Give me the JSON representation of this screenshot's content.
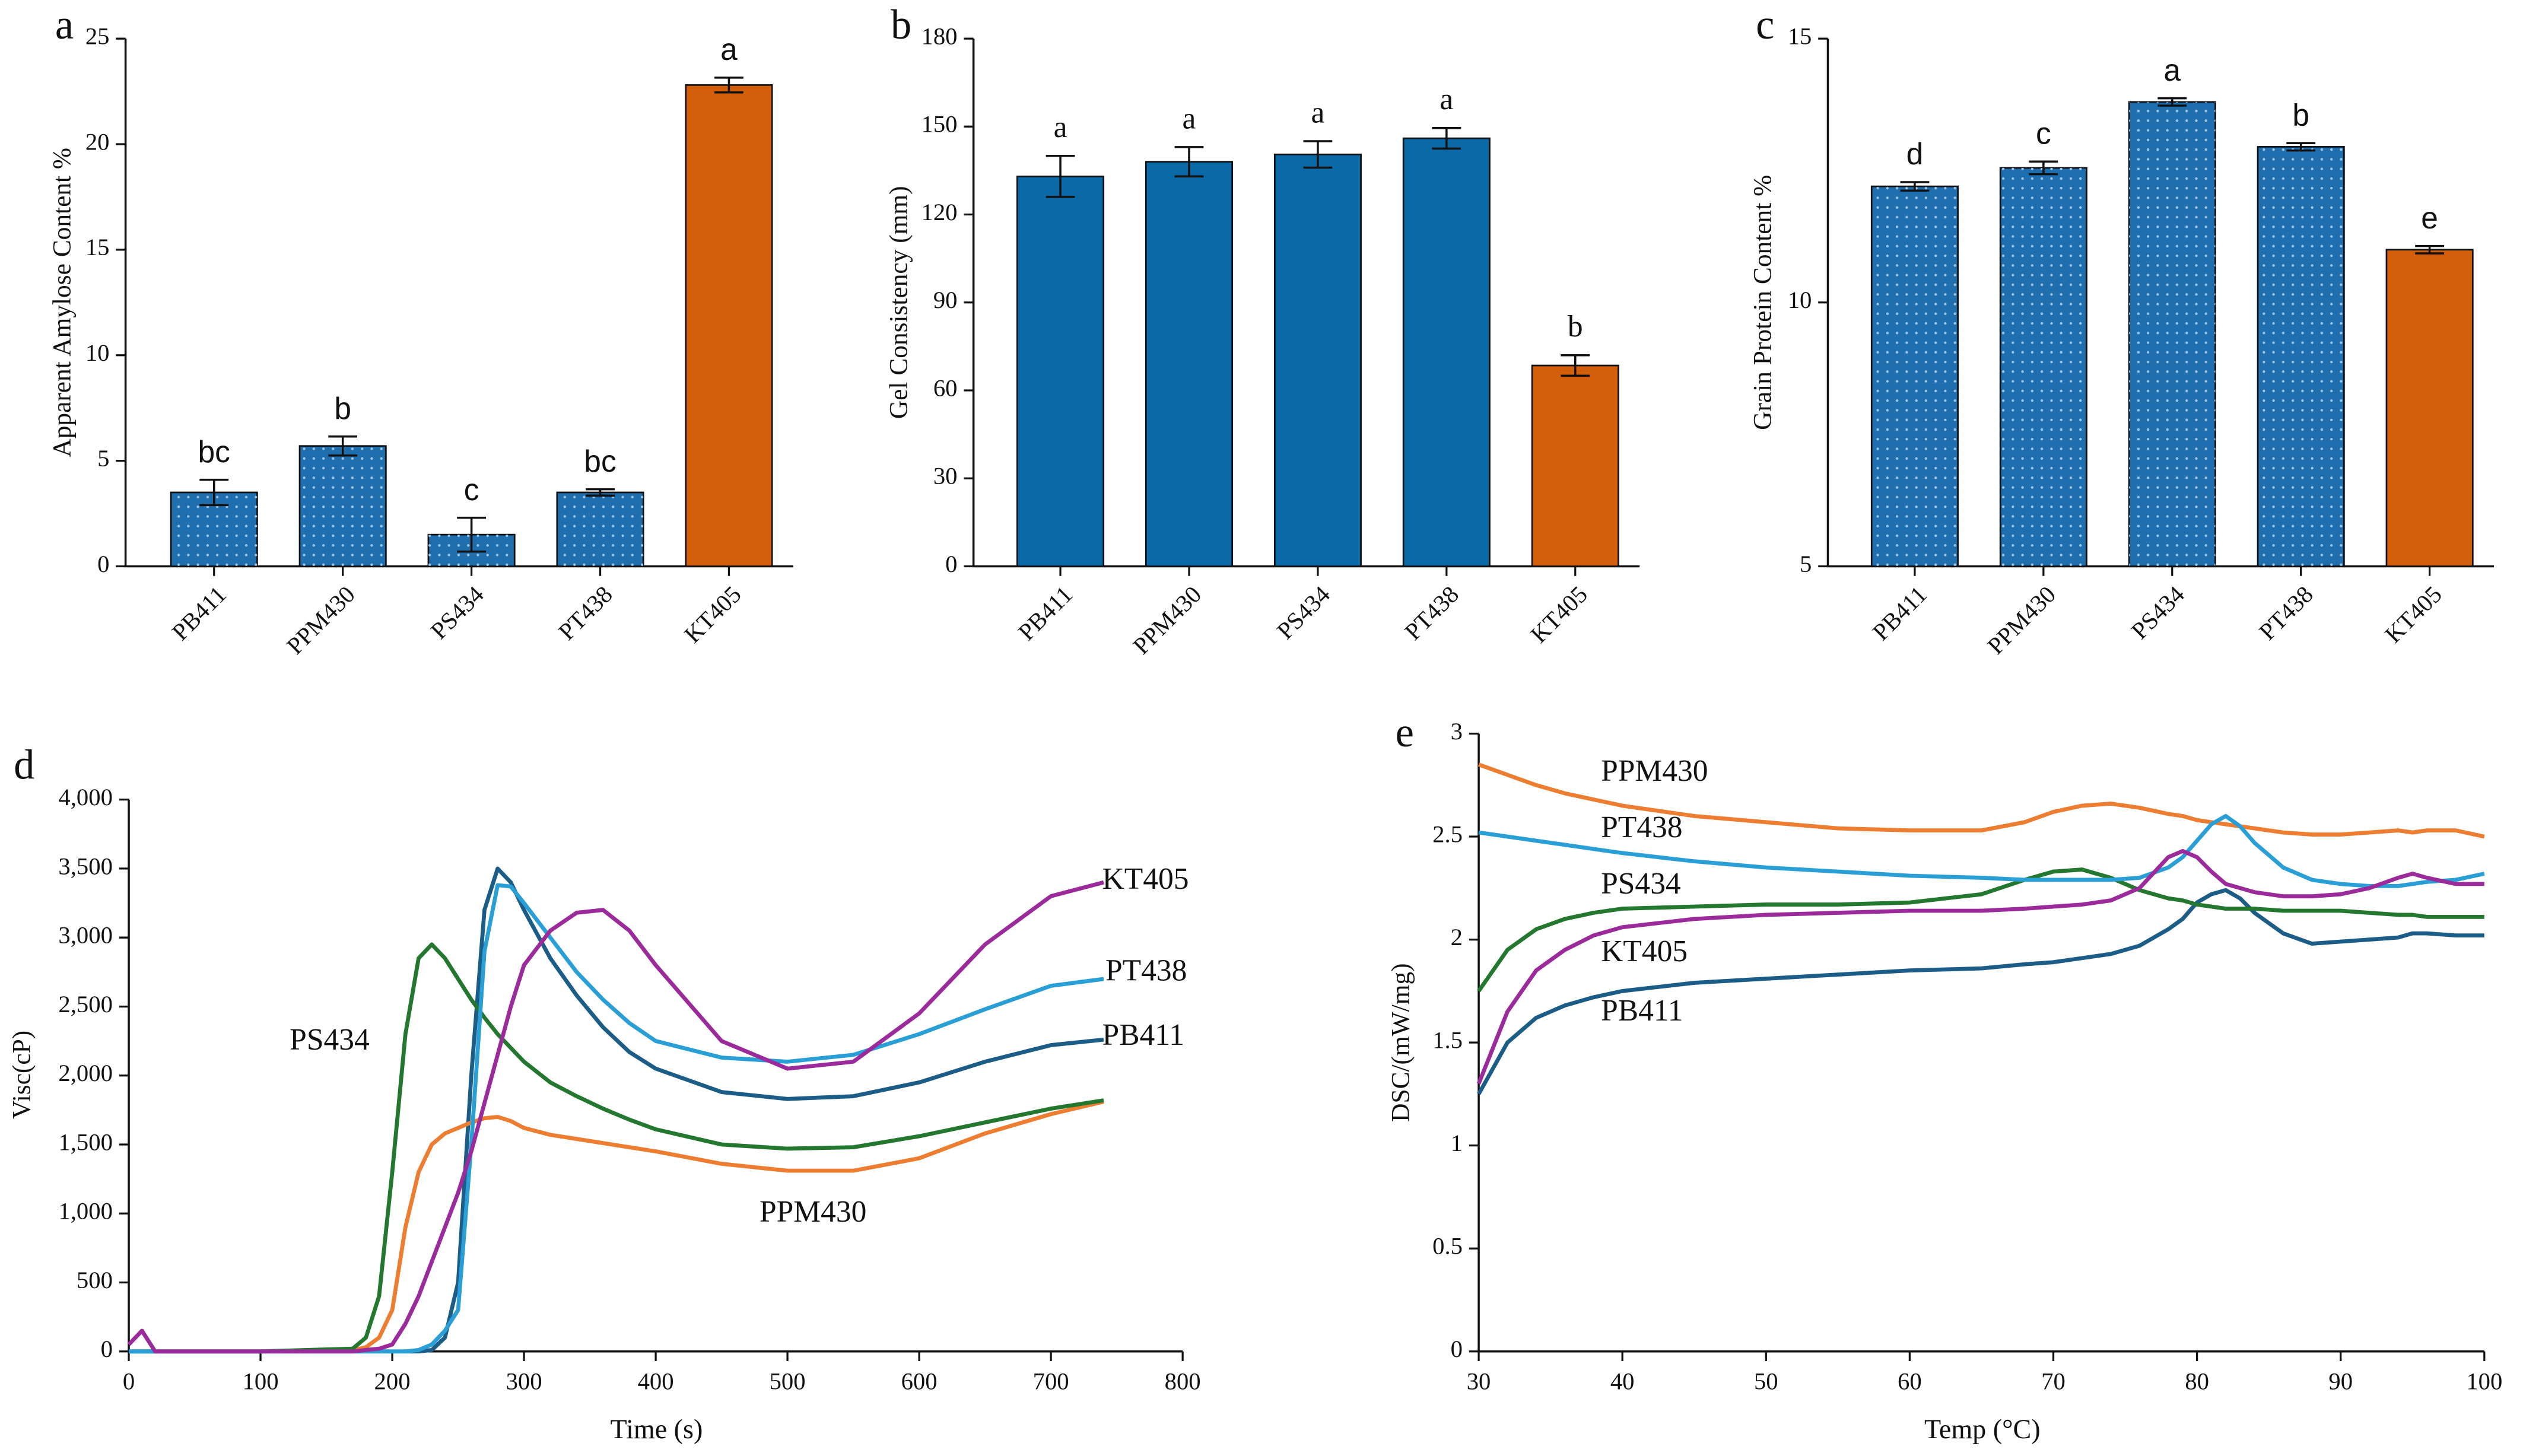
{
  "chart_data": [
    {
      "type": "bar",
      "panel": "a",
      "ylabel": "Apparent Amylose Content %",
      "categories": [
        "PB411",
        "PPM430",
        "PS434",
        "PT438",
        "KT405"
      ],
      "values": [
        3.5,
        5.7,
        1.5,
        3.5,
        22.8
      ],
      "errors": [
        0.6,
        0.45,
        0.8,
        0.15,
        0.35
      ],
      "annotations": [
        "bc",
        "b",
        "c",
        "bc",
        "a"
      ],
      "colors": [
        "#1f6faf",
        "#1f6faf",
        "#1f6faf",
        "#1f6faf",
        "#d35f0a"
      ],
      "pattern": "dots",
      "ylim": [
        0,
        25
      ],
      "yticks": [
        0,
        5,
        10,
        15,
        20,
        25
      ]
    },
    {
      "type": "bar",
      "panel": "b",
      "ylabel": "Gel Consistency (mm)",
      "categories": [
        "PB411",
        "PPM430",
        "PS434",
        "PT438",
        "KT405"
      ],
      "values": [
        133,
        138,
        140.5,
        146,
        68.5
      ],
      "errors": [
        7,
        5,
        4.5,
        3.5,
        3.5
      ],
      "annotations": [
        "a",
        "a",
        "a",
        "a",
        "b"
      ],
      "colors": [
        "#0a6aa8",
        "#0a6aa8",
        "#0a6aa8",
        "#0a6aa8",
        "#d35f0a"
      ],
      "pattern": "none",
      "ylim": [
        0,
        180
      ],
      "yticks": [
        0,
        30,
        60,
        90,
        120,
        150,
        180
      ]
    },
    {
      "type": "bar",
      "panel": "c",
      "ylabel": "Grain Protein Content %",
      "categories": [
        "PB411",
        "PPM430",
        "PS434",
        "PT438",
        "KT405"
      ],
      "values": [
        12.2,
        12.55,
        13.8,
        12.95,
        11.0
      ],
      "errors": [
        0.08,
        0.12,
        0.07,
        0.07,
        0.07
      ],
      "annotations": [
        "d",
        "c",
        "a",
        "b",
        "e"
      ],
      "colors": [
        "#1f6faf",
        "#1f6faf",
        "#1f6faf",
        "#1f6faf",
        "#d35f0a"
      ],
      "pattern": "dots",
      "ylim": [
        5,
        15
      ],
      "yticks": [
        5,
        10,
        15
      ]
    },
    {
      "type": "line",
      "panel": "d",
      "xlabel": "Time (s)",
      "ylabel": "Visc(cP)",
      "x": [
        0,
        10,
        20,
        100,
        170,
        180,
        190,
        200,
        210,
        220,
        230,
        240,
        250,
        260,
        270,
        280,
        290,
        300,
        320,
        340,
        360,
        380,
        400,
        450,
        500,
        550,
        600,
        650,
        700,
        740
      ],
      "series": [
        {
          "name": "PB411",
          "color": "#1c5d88",
          "values": [
            0,
            0,
            0,
            0,
            0,
            0,
            0,
            0,
            0,
            0,
            10,
            100,
            500,
            2000,
            3200,
            3500,
            3400,
            3200,
            2850,
            2580,
            2350,
            2170,
            2050,
            1880,
            1830,
            1850,
            1950,
            2100,
            2220,
            2260
          ]
        },
        {
          "name": "PPM430",
          "color": "#ed7d31",
          "values": [
            0,
            0,
            0,
            0,
            10,
            30,
            100,
            300,
            900,
            1300,
            1500,
            1580,
            1620,
            1660,
            1690,
            1700,
            1670,
            1620,
            1570,
            1540,
            1510,
            1480,
            1450,
            1360,
            1310,
            1310,
            1400,
            1580,
            1720,
            1810
          ]
        },
        {
          "name": "PS434",
          "color": "#23772e",
          "values": [
            0,
            0,
            0,
            0,
            20,
            100,
            400,
            1300,
            2300,
            2850,
            2950,
            2850,
            2700,
            2550,
            2420,
            2300,
            2200,
            2100,
            1950,
            1850,
            1760,
            1680,
            1610,
            1500,
            1470,
            1480,
            1560,
            1660,
            1760,
            1820
          ]
        },
        {
          "name": "PT438",
          "color": "#2a9fd6",
          "values": [
            0,
            0,
            0,
            0,
            0,
            0,
            0,
            0,
            0,
            10,
            50,
            150,
            300,
            1500,
            2900,
            3380,
            3370,
            3250,
            3000,
            2750,
            2550,
            2380,
            2250,
            2130,
            2100,
            2150,
            2300,
            2480,
            2650,
            2700
          ]
        },
        {
          "name": "KT405",
          "color": "#9b2a9b",
          "values": [
            50,
            150,
            0,
            0,
            0,
            10,
            20,
            50,
            200,
            400,
            650,
            900,
            1150,
            1450,
            1800,
            2150,
            2500,
            2800,
            3050,
            3180,
            3200,
            3050,
            2800,
            2250,
            2050,
            2100,
            2450,
            2950,
            3300,
            3400
          ]
        }
      ],
      "xlim": [
        0,
        800
      ],
      "xticks": [
        0,
        100,
        200,
        300,
        400,
        500,
        600,
        700,
        800
      ],
      "ylim": [
        0,
        4000
      ],
      "yticks": [
        0,
        500,
        {
          "value": 1000,
          "label": "1,000"
        },
        {
          "value": 1500,
          "label": "1,500"
        },
        {
          "value": 2000,
          "label": "2,000"
        },
        {
          "value": 2500,
          "label": "2,500"
        },
        {
          "value": 3000,
          "label": "3,000"
        },
        {
          "value": 3500,
          "label": "3,500"
        },
        {
          "value": 4000,
          "label": "4,000"
        }
      ]
    },
    {
      "type": "line",
      "panel": "e",
      "xlabel": "Temp (°C)",
      "ylabel": "DSC/(mW/mg)",
      "x": [
        30,
        32,
        34,
        36,
        38,
        40,
        45,
        50,
        55,
        60,
        65,
        68,
        70,
        72,
        74,
        76,
        78,
        79,
        80,
        81,
        82,
        83,
        84,
        86,
        88,
        90,
        92,
        94,
        95,
        96,
        98,
        100
      ],
      "series": [
        {
          "name": "PB411",
          "color": "#1c5d88",
          "values": [
            1.25,
            1.5,
            1.62,
            1.68,
            1.72,
            1.75,
            1.79,
            1.81,
            1.83,
            1.85,
            1.86,
            1.88,
            1.89,
            1.91,
            1.93,
            1.97,
            2.05,
            2.1,
            2.18,
            2.22,
            2.24,
            2.2,
            2.13,
            2.03,
            1.98,
            1.99,
            2.0,
            2.01,
            2.03,
            2.03,
            2.02,
            2.02
          ]
        },
        {
          "name": "PPM430",
          "color": "#ed7d31",
          "values": [
            2.85,
            2.8,
            2.75,
            2.71,
            2.68,
            2.65,
            2.6,
            2.57,
            2.54,
            2.53,
            2.53,
            2.57,
            2.62,
            2.65,
            2.66,
            2.64,
            2.61,
            2.6,
            2.58,
            2.57,
            2.56,
            2.55,
            2.54,
            2.52,
            2.51,
            2.51,
            2.52,
            2.53,
            2.52,
            2.53,
            2.53,
            2.5
          ]
        },
        {
          "name": "PS434",
          "color": "#23772e",
          "values": [
            1.75,
            1.95,
            2.05,
            2.1,
            2.13,
            2.15,
            2.16,
            2.17,
            2.17,
            2.18,
            2.22,
            2.29,
            2.33,
            2.34,
            2.3,
            2.24,
            2.2,
            2.19,
            2.17,
            2.16,
            2.15,
            2.15,
            2.15,
            2.14,
            2.14,
            2.14,
            2.13,
            2.12,
            2.12,
            2.11,
            2.11,
            2.11
          ]
        },
        {
          "name": "PT438",
          "color": "#2a9fd6",
          "values": [
            2.52,
            2.5,
            2.48,
            2.46,
            2.44,
            2.42,
            2.38,
            2.35,
            2.33,
            2.31,
            2.3,
            2.29,
            2.29,
            2.29,
            2.29,
            2.3,
            2.35,
            2.4,
            2.48,
            2.56,
            2.6,
            2.55,
            2.47,
            2.35,
            2.29,
            2.27,
            2.26,
            2.26,
            2.27,
            2.28,
            2.29,
            2.32
          ]
        },
        {
          "name": "KT405",
          "color": "#9b2a9b",
          "values": [
            1.3,
            1.65,
            1.85,
            1.95,
            2.02,
            2.06,
            2.1,
            2.12,
            2.13,
            2.14,
            2.14,
            2.15,
            2.16,
            2.17,
            2.19,
            2.25,
            2.4,
            2.43,
            2.4,
            2.33,
            2.27,
            2.25,
            2.23,
            2.21,
            2.21,
            2.22,
            2.25,
            2.3,
            2.32,
            2.3,
            2.27,
            2.27
          ]
        }
      ],
      "xlim": [
        30,
        100
      ],
      "xticks": [
        30,
        40,
        50,
        60,
        70,
        80,
        90,
        100
      ],
      "ylim": [
        0,
        3
      ],
      "yticks": [
        0,
        0.5,
        1,
        1.5,
        2,
        2.5,
        3
      ]
    }
  ]
}
